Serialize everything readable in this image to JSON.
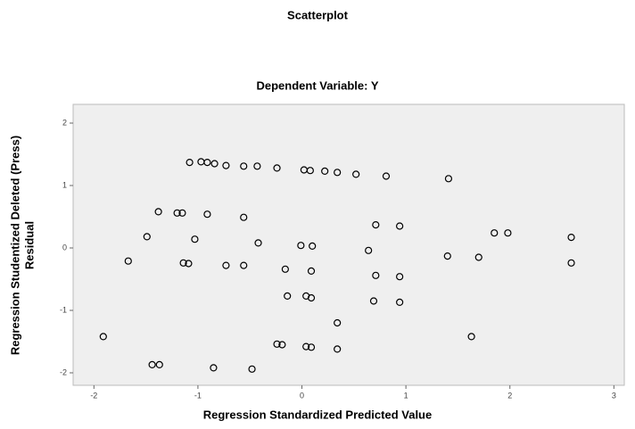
{
  "chart_data": {
    "type": "scatter",
    "title": "Scatterplot",
    "subtitle": "Dependent Variable: Y",
    "x_label": "Regression Standardized Predicted Value",
    "y_label": [
      "Regression Studentized Deleted (Press)",
      "Residual"
    ],
    "xlim": [
      -2.2,
      3.1
    ],
    "ylim": [
      -2.2,
      2.3
    ],
    "xticks": [
      -2,
      -1,
      0,
      1,
      2,
      3
    ],
    "yticks": [
      -2,
      -1,
      0,
      1,
      2
    ],
    "color": "#000000",
    "x": [
      -1.08,
      -0.97,
      -0.91,
      -0.84,
      -0.73,
      -0.56,
      -0.43,
      -0.24,
      0.02,
      0.08,
      0.22,
      0.34,
      0.52,
      0.81,
      1.41,
      -1.38,
      -1.2,
      -1.15,
      -0.91,
      -0.56,
      0.71,
      0.94,
      -1.49,
      -1.03,
      -0.42,
      -0.01,
      0.1,
      0.64,
      1.85,
      1.98,
      2.59,
      -1.67,
      -1.14,
      -1.09,
      -0.73,
      -0.56,
      -0.16,
      0.09,
      0.71,
      0.94,
      1.4,
      1.7,
      2.59,
      -0.14,
      0.04,
      0.09,
      0.69,
      0.94,
      0.34,
      -1.91,
      1.63,
      -0.24,
      -0.19,
      0.04,
      0.09,
      0.34,
      -1.44,
      -1.37,
      -0.85,
      -0.48
    ],
    "values": [
      1.37,
      1.38,
      1.37,
      1.35,
      1.32,
      1.31,
      1.31,
      1.28,
      1.25,
      1.24,
      1.23,
      1.21,
      1.18,
      1.15,
      1.11,
      0.58,
      0.56,
      0.56,
      0.54,
      0.49,
      0.37,
      0.35,
      0.18,
      0.14,
      0.08,
      0.04,
      0.03,
      -0.04,
      0.24,
      0.24,
      0.17,
      -0.21,
      -0.24,
      -0.25,
      -0.28,
      -0.28,
      -0.34,
      -0.37,
      -0.44,
      -0.46,
      -0.13,
      -0.15,
      -0.24,
      -0.77,
      -0.77,
      -0.8,
      -0.85,
      -0.87,
      -1.2,
      -1.42,
      -1.42,
      -1.54,
      -1.55,
      -1.58,
      -1.59,
      -1.62,
      -1.87,
      -1.87,
      -1.92,
      -1.94
    ]
  }
}
